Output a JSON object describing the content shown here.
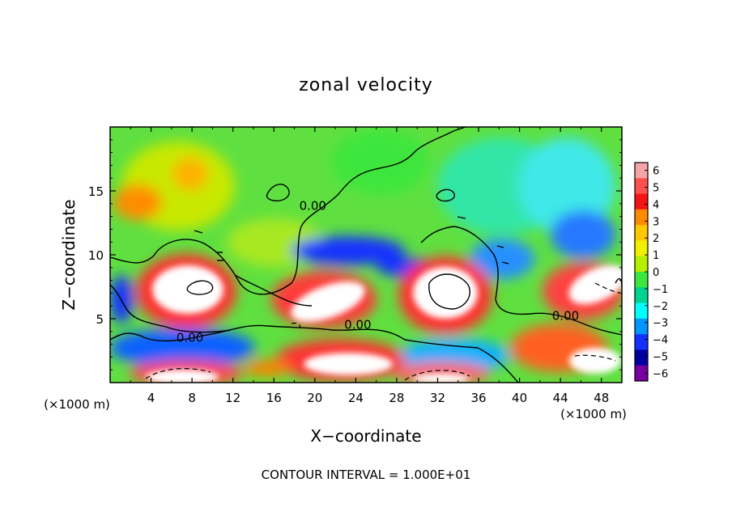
{
  "chart_data": {
    "type": "heatmap",
    "title": "zonal velocity",
    "xlabel": "X−coordinate",
    "ylabel": "Z−coordinate",
    "x_unit_label": "(×1000 m)",
    "y_unit_label": "(×1000 m)",
    "xlim": [
      0,
      50
    ],
    "ylim": [
      0,
      20
    ],
    "x_ticks": [
      4,
      8,
      12,
      16,
      20,
      24,
      28,
      32,
      36,
      40,
      44,
      48
    ],
    "y_ticks": [
      5,
      10,
      15
    ],
    "colorbar": {
      "ticks": [
        "6",
        "5",
        "4",
        "3",
        "2",
        "1",
        "0",
        "−1",
        "−2",
        "−3",
        "−4",
        "−5",
        "−6"
      ],
      "colors": [
        "#f4a6a6",
        "#ff5050",
        "#f31515",
        "#ff8c00",
        "#ffc800",
        "#f0f000",
        "#b4f000",
        "#3ce63c",
        "#00d290",
        "#00ffff",
        "#0096ff",
        "#1432ff",
        "#0000a0",
        "#7800a0"
      ]
    },
    "contour_labels": [
      {
        "text": "0.00",
        "x": 19.8,
        "z": 13.5
      },
      {
        "text": "0.00",
        "x": 7.8,
        "z": 3.2
      },
      {
        "text": "0.00",
        "x": 24.2,
        "z": 4.2
      },
      {
        "text": "0.00",
        "x": 44.5,
        "z": 4.9
      }
    ],
    "footer": "CONTOUR INTERVAL = 1.000E+01"
  }
}
